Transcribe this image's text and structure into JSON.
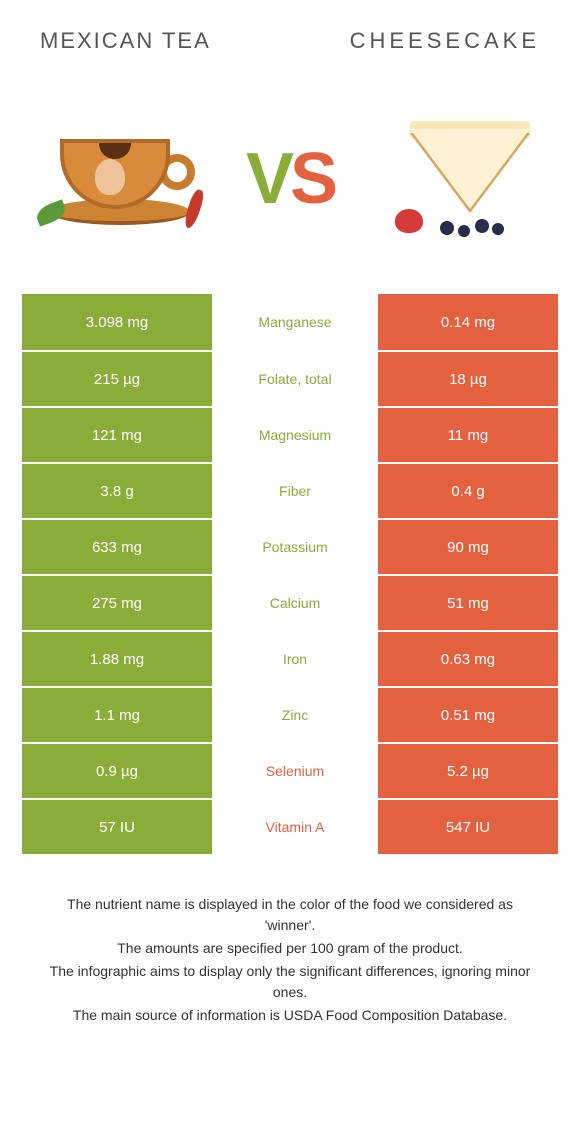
{
  "left_title": "Mexican tea",
  "right_title": "Cheesecake",
  "vs": {
    "v": "V",
    "s": "S"
  },
  "colors": {
    "left": "#8aad3a",
    "right": "#e4613f"
  },
  "rows": [
    {
      "left": "3.098 mg",
      "label": "Manganese",
      "right": "0.14 mg",
      "winner": "left"
    },
    {
      "left": "215 µg",
      "label": "Folate, total",
      "right": "18 µg",
      "winner": "left"
    },
    {
      "left": "121 mg",
      "label": "Magnesium",
      "right": "11 mg",
      "winner": "left"
    },
    {
      "left": "3.8 g",
      "label": "Fiber",
      "right": "0.4 g",
      "winner": "left"
    },
    {
      "left": "633 mg",
      "label": "Potassium",
      "right": "90 mg",
      "winner": "left"
    },
    {
      "left": "275 mg",
      "label": "Calcium",
      "right": "51 mg",
      "winner": "left"
    },
    {
      "left": "1.88 mg",
      "label": "Iron",
      "right": "0.63 mg",
      "winner": "left"
    },
    {
      "left": "1.1 mg",
      "label": "Zinc",
      "right": "0.51 mg",
      "winner": "left"
    },
    {
      "left": "0.9 µg",
      "label": "Selenium",
      "right": "5.2 µg",
      "winner": "right"
    },
    {
      "left": "57 IU",
      "label": "Vitamin A",
      "right": "547 IU",
      "winner": "right"
    }
  ],
  "notes": [
    "The nutrient name is displayed in the color of the food we considered as 'winner'.",
    "The amounts are specified per 100 gram of the product.",
    "The infographic aims to display only the significant differences, ignoring minor ones.",
    "The main source of information is USDA Food Composition Database."
  ]
}
